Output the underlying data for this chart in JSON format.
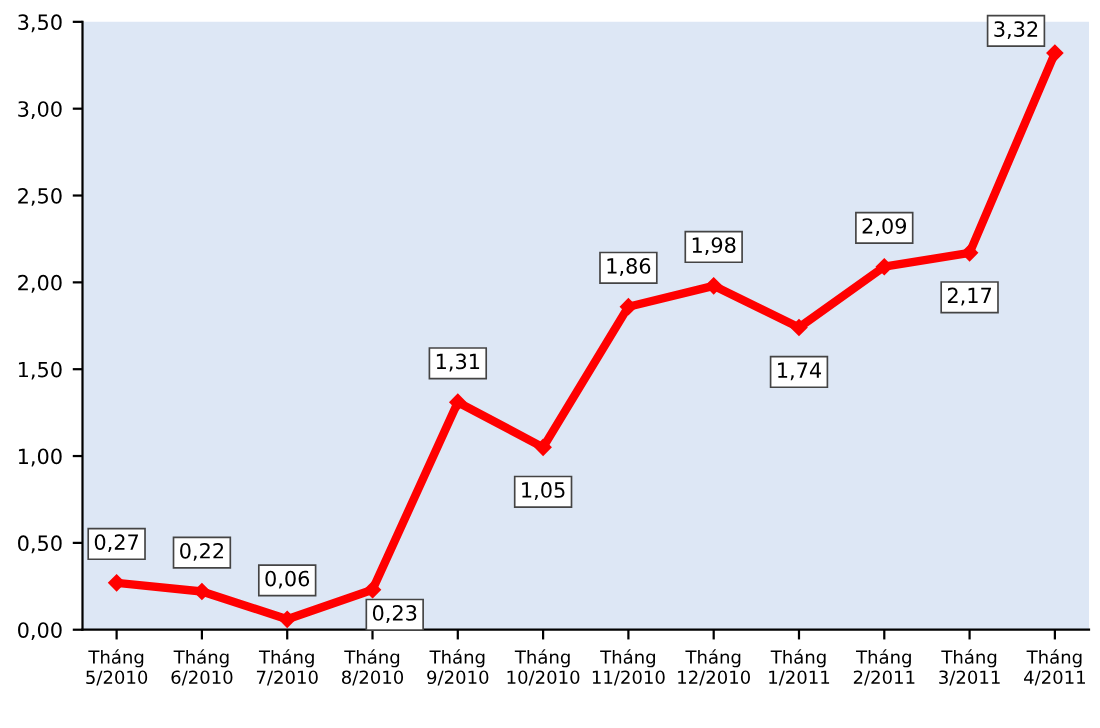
{
  "chart_data": {
    "type": "line",
    "categories": [
      "Tháng\n5/2010",
      "Tháng\n6/2010",
      "Tháng\n7/2010",
      "Tháng\n8/2010",
      "Tháng\n9/2010",
      "Tháng\n10/2010",
      "Tháng\n11/2010",
      "Tháng\n12/2010",
      "Tháng\n1/2011",
      "Tháng\n2/2011",
      "Tháng\n3/2011",
      "Tháng\n4/2011"
    ],
    "series": [
      {
        "color": "#ff0000",
        "values": [
          0.27,
          0.22,
          0.06,
          0.23,
          1.31,
          1.05,
          1.86,
          1.98,
          1.74,
          2.09,
          2.17,
          3.32
        ],
        "value_labels": [
          "0,27",
          "0,22",
          "0,06",
          "0,23",
          "1,31",
          "1,05",
          "1,86",
          "1,98",
          "1,74",
          "2,09",
          "2,17",
          "3,32"
        ]
      }
    ],
    "ylim": [
      0,
      3.5
    ],
    "yticks": [
      {
        "value": 0,
        "label": "0,00"
      },
      {
        "value": 0.5,
        "label": "0,50"
      },
      {
        "value": 1,
        "label": "1,00"
      },
      {
        "value": 1.5,
        "label": "1,50"
      },
      {
        "value": 2,
        "label": "2,00"
      },
      {
        "value": 2.5,
        "label": "2,50"
      },
      {
        "value": 3,
        "label": "3,00"
      },
      {
        "value": 3.5,
        "label": "3,50"
      }
    ],
    "grid": false,
    "legend": false,
    "marker": "diamond",
    "line_style": "solid"
  }
}
